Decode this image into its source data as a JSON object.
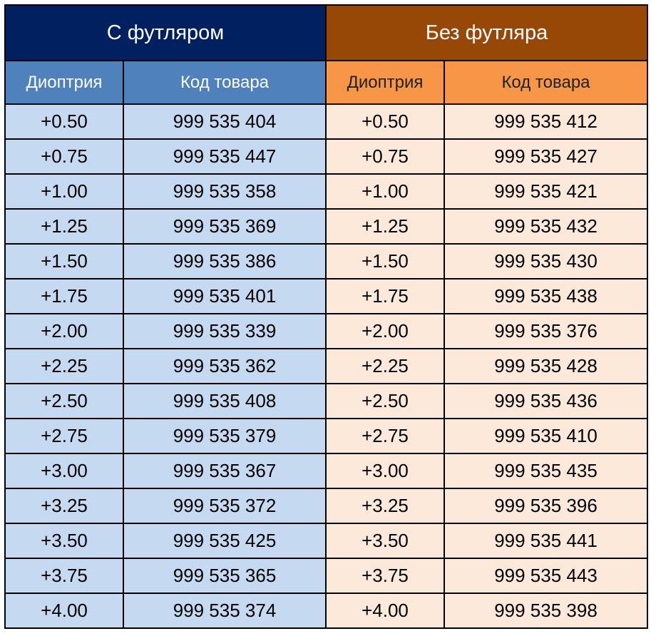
{
  "groups": {
    "with_case": {
      "title": "С футляром",
      "color": "#002060",
      "subheader_color": "#4f81bd",
      "cell_color": "#c5d9f1"
    },
    "without_case": {
      "title": "Без футляра",
      "color": "#984806",
      "subheader_color": "#f79646",
      "cell_color": "#fde9d9"
    }
  },
  "columns": {
    "diopter": "Диоптрия",
    "product_code": "Код товара"
  },
  "rows": [
    {
      "d1": "+0.50",
      "c1": "999 535 404",
      "d2": "+0.50",
      "c2": "999 535 412"
    },
    {
      "d1": "+0.75",
      "c1": "999 535 447",
      "d2": "+0.75",
      "c2": "999 535 427"
    },
    {
      "d1": "+1.00",
      "c1": "999 535 358",
      "d2": "+1.00",
      "c2": "999 535 421"
    },
    {
      "d1": "+1.25",
      "c1": "999 535 369",
      "d2": "+1.25",
      "c2": "999 535 432"
    },
    {
      "d1": "+1.50",
      "c1": "999 535 386",
      "d2": "+1.50",
      "c2": "999 535 430"
    },
    {
      "d1": "+1.75",
      "c1": "999 535 401",
      "d2": "+1.75",
      "c2": "999 535 438"
    },
    {
      "d1": "+2.00",
      "c1": "999 535 339",
      "d2": "+2.00",
      "c2": "999 535 376"
    },
    {
      "d1": "+2.25",
      "c1": "999 535 362",
      "d2": "+2.25",
      "c2": "999 535 428"
    },
    {
      "d1": "+2.50",
      "c1": "999 535 408",
      "d2": "+2.50",
      "c2": "999 535 436"
    },
    {
      "d1": "+2.75",
      "c1": "999 535 379",
      "d2": "+2.75",
      "c2": "999 535 410"
    },
    {
      "d1": "+3.00",
      "c1": "999 535 367",
      "d2": "+3.00",
      "c2": "999 535 435"
    },
    {
      "d1": "+3.25",
      "c1": "999 535 372",
      "d2": "+3.25",
      "c2": "999 535 396"
    },
    {
      "d1": "+3.50",
      "c1": "999 535 425",
      "d2": "+3.50",
      "c2": "999 535 441"
    },
    {
      "d1": "+3.75",
      "c1": "999 535 365",
      "d2": "+3.75",
      "c2": "999 535 443"
    },
    {
      "d1": "+4.00",
      "c1": "999 535 374",
      "d2": "+4.00",
      "c2": "999 535 398"
    }
  ]
}
